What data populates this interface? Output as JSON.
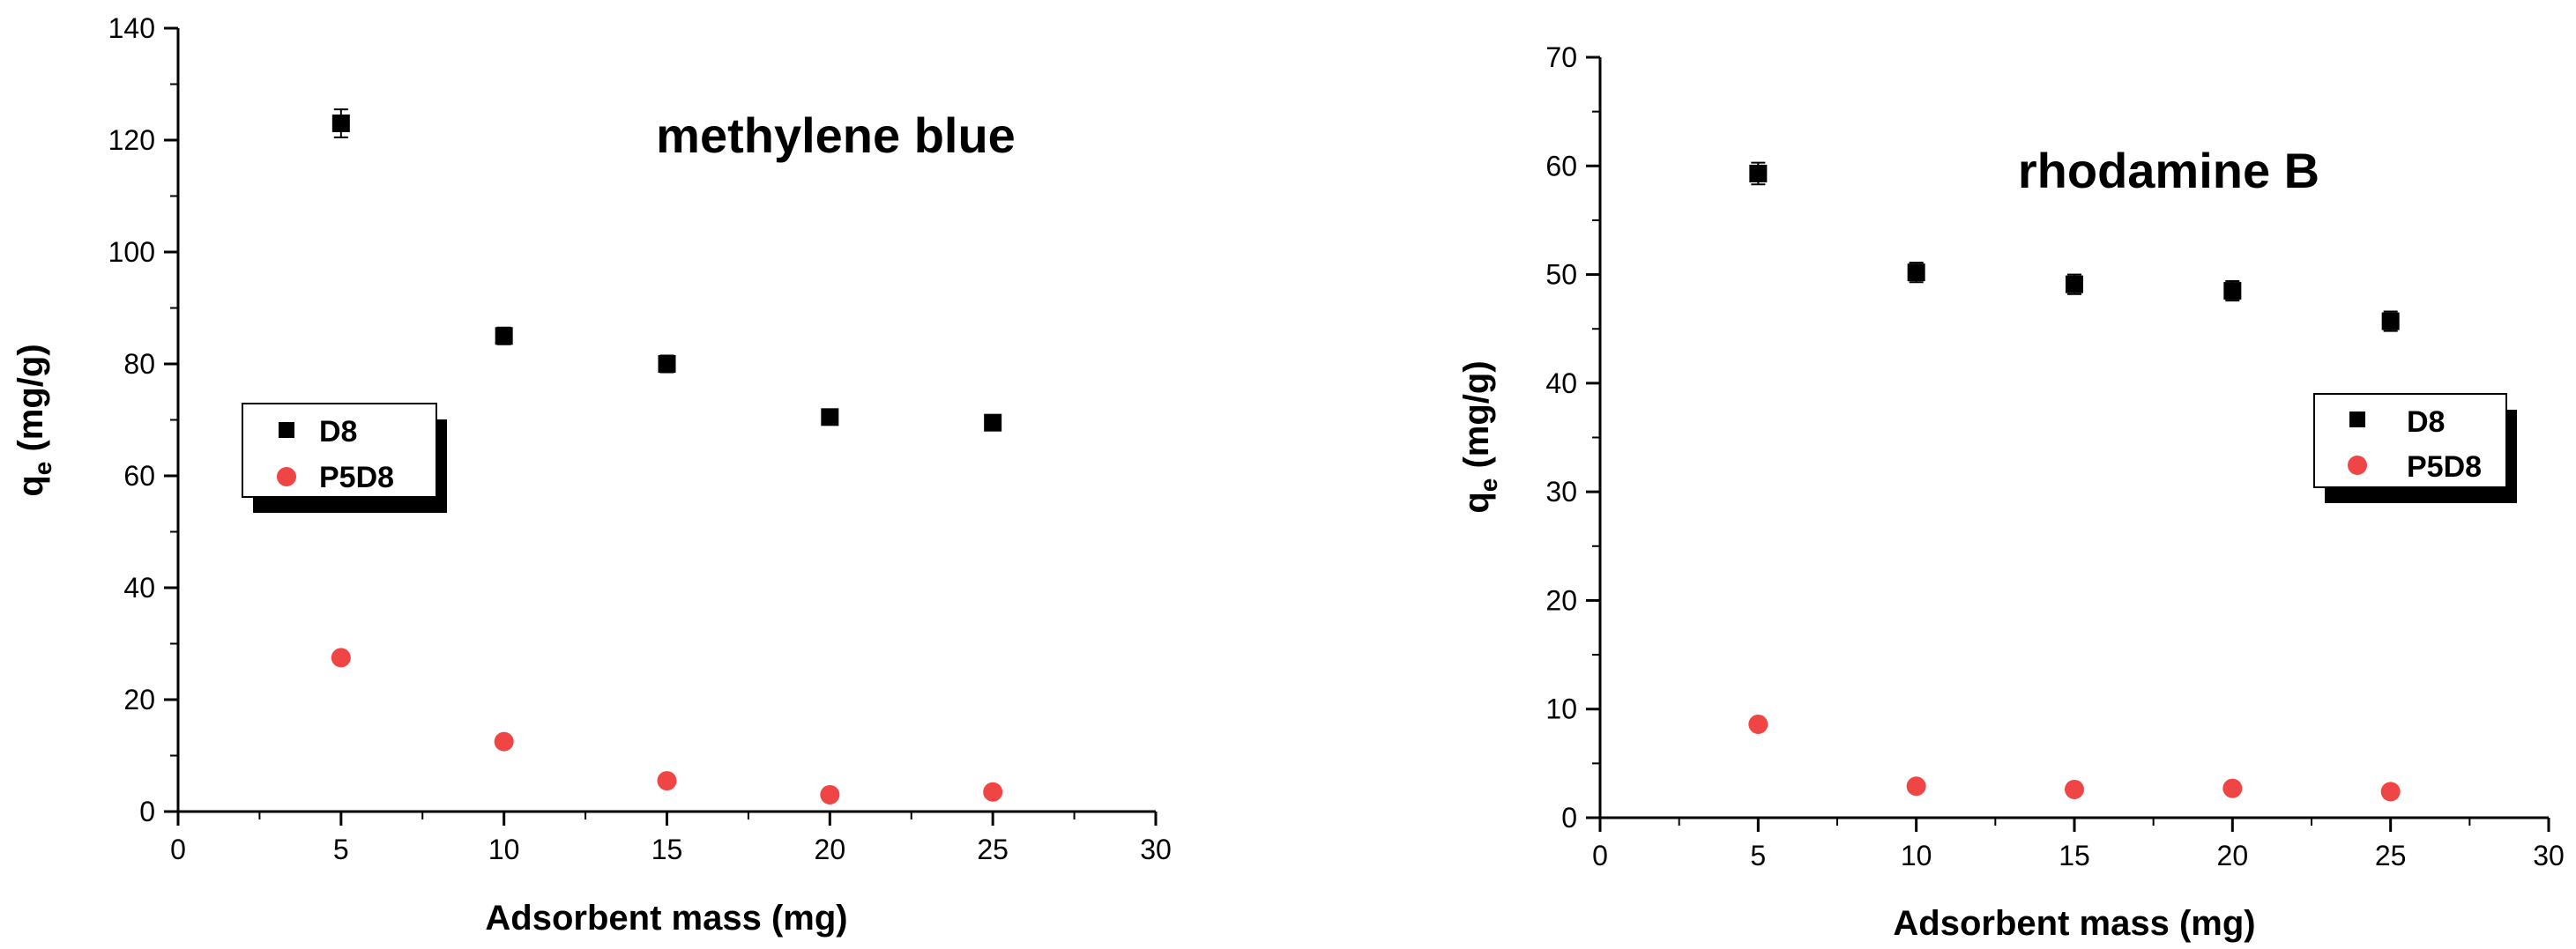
{
  "chart_data": [
    {
      "type": "scatter",
      "title": "methylene blue",
      "xlabel": "Adsorbent mass (mg)",
      "ylabel_main": "q",
      "ylabel_sub": "e",
      "ylabel_unit": " (mg/g)",
      "xlim": [
        0,
        30
      ],
      "ylim": [
        0,
        140
      ],
      "xticks": [
        0,
        5,
        10,
        15,
        20,
        25,
        30
      ],
      "yticks": [
        0,
        20,
        40,
        60,
        80,
        100,
        120,
        140
      ],
      "grid": false,
      "legend_position": "middle-left",
      "series": [
        {
          "name": "D8",
          "marker": "square",
          "color": "#000000",
          "points": [
            {
              "x": 5,
              "y": 123,
              "err": 2.5
            },
            {
              "x": 10,
              "y": 85,
              "err": 1.5
            },
            {
              "x": 15,
              "y": 80,
              "err": 1.5
            },
            {
              "x": 20,
              "y": 70.5,
              "err": 1
            },
            {
              "x": 25,
              "y": 69.5,
              "err": 1
            }
          ]
        },
        {
          "name": "P5D8",
          "marker": "circle",
          "color": "#f04545",
          "points": [
            {
              "x": 5,
              "y": 27.5
            },
            {
              "x": 10,
              "y": 12.5
            },
            {
              "x": 15,
              "y": 5.5
            },
            {
              "x": 20,
              "y": 3
            },
            {
              "x": 25,
              "y": 3.5
            }
          ]
        }
      ]
    },
    {
      "type": "scatter",
      "title": "rhodamine B",
      "xlabel": "Adsorbent mass (mg)",
      "ylabel_main": "q",
      "ylabel_sub": "e",
      "ylabel_unit": " (mg/g)",
      "xlim": [
        0,
        30
      ],
      "ylim": [
        0,
        70
      ],
      "xticks": [
        0,
        5,
        10,
        15,
        20,
        25,
        30
      ],
      "yticks": [
        0,
        10,
        20,
        30,
        40,
        50,
        60,
        70
      ],
      "grid": false,
      "legend_position": "middle-right",
      "series": [
        {
          "name": "D8",
          "marker": "square",
          "color": "#000000",
          "points": [
            {
              "x": 5,
              "y": 59.3,
              "err": 1
            },
            {
              "x": 10,
              "y": 50.2,
              "err": 0.9
            },
            {
              "x": 15,
              "y": 49.1,
              "err": 0.9
            },
            {
              "x": 20,
              "y": 48.5,
              "err": 0.9
            },
            {
              "x": 25,
              "y": 45.7,
              "err": 0.9
            }
          ]
        },
        {
          "name": "P5D8",
          "marker": "circle",
          "color": "#f04545",
          "points": [
            {
              "x": 5,
              "y": 8.6
            },
            {
              "x": 10,
              "y": 2.9
            },
            {
              "x": 15,
              "y": 2.6
            },
            {
              "x": 20,
              "y": 2.7
            },
            {
              "x": 25,
              "y": 2.4
            }
          ]
        }
      ]
    }
  ]
}
